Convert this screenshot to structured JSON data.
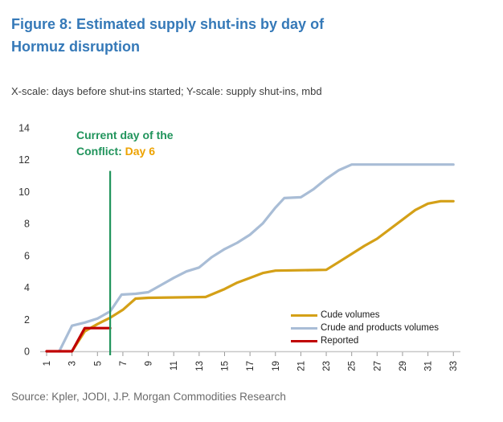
{
  "figure": {
    "title_line1": "Figure 8: Estimated supply shut-ins by day of",
    "title_line2": "Hormuz disruption",
    "subtitle": "X-scale: days before shut-ins started; Y-scale: supply shut-ins, mbd",
    "source": "Source: Kpler, JODI, J.P. Morgan Commodities Research"
  },
  "colors": {
    "title_blue": "#3579B8",
    "crude": "#D4A017",
    "crude_products": "#A9BDD6",
    "reported": "#C00000",
    "event_green": "#21945C",
    "day_amber": "#EDA200",
    "axis_line": "#C8C8C8",
    "tick": "#999999",
    "label": "#262626",
    "source_gray": "#6A6A6A"
  },
  "chart_data": {
    "type": "line",
    "title": "Figure 8: Estimated supply shut-ins by day of Hormuz disruption",
    "x_label": "days before shut-ins started",
    "y_label": "supply shut-ins, mbd",
    "xlim": [
      1,
      33
    ],
    "ylim": [
      0,
      14
    ],
    "x_ticks": [
      1,
      3,
      5,
      7,
      9,
      11,
      13,
      15,
      17,
      19,
      21,
      23,
      25,
      27,
      29,
      31,
      33
    ],
    "y_ticks": [
      0,
      2,
      4,
      6,
      8,
      10,
      12,
      14
    ],
    "grid": false,
    "legend_position": "inside lower right",
    "annotation": {
      "text_line1": "Current day of the",
      "text_line2_prefix": "Conflict: ",
      "text_line2_value": "Day 6",
      "x_day": 6,
      "line_top_value": 11.3
    },
    "series": [
      {
        "name": "Cude volumes",
        "color_key": "crude",
        "z": 2,
        "points": [
          [
            3,
            0
          ],
          [
            4,
            1.25
          ],
          [
            5,
            1.7
          ],
          [
            6,
            2.1
          ],
          [
            7,
            2.6
          ],
          [
            8,
            3.3
          ],
          [
            9,
            3.35
          ],
          [
            13.5,
            3.4
          ],
          [
            15,
            3.9
          ],
          [
            16,
            4.3
          ],
          [
            17,
            4.6
          ],
          [
            18,
            4.9
          ],
          [
            19,
            5.05
          ],
          [
            23,
            5.1
          ],
          [
            24,
            5.6
          ],
          [
            25,
            6.1
          ],
          [
            26,
            6.6
          ],
          [
            27,
            7.05
          ],
          [
            28,
            7.65
          ],
          [
            29,
            8.25
          ],
          [
            30,
            8.85
          ],
          [
            31,
            9.25
          ],
          [
            32,
            9.4
          ],
          [
            33,
            9.4
          ]
        ]
      },
      {
        "name": "Crude and products volumes",
        "color_key": "crude_products",
        "z": 1,
        "points": [
          [
            2,
            0
          ],
          [
            3,
            1.6
          ],
          [
            4,
            1.8
          ],
          [
            5,
            2.05
          ],
          [
            6,
            2.5
          ],
          [
            6.9,
            3.55
          ],
          [
            8,
            3.6
          ],
          [
            9,
            3.7
          ],
          [
            10,
            4.15
          ],
          [
            11,
            4.6
          ],
          [
            12,
            5.0
          ],
          [
            13,
            5.25
          ],
          [
            14,
            5.9
          ],
          [
            15,
            6.4
          ],
          [
            16,
            6.8
          ],
          [
            17,
            7.3
          ],
          [
            18,
            8.0
          ],
          [
            19,
            9.0
          ],
          [
            19.7,
            9.6
          ],
          [
            21,
            9.65
          ],
          [
            22,
            10.15
          ],
          [
            23,
            10.8
          ],
          [
            24,
            11.35
          ],
          [
            25,
            11.7
          ],
          [
            33,
            11.7
          ]
        ]
      },
      {
        "name": "Reported",
        "color_key": "reported",
        "z": 3,
        "points": [
          [
            1,
            0
          ],
          [
            3,
            0
          ],
          [
            4,
            1.45
          ],
          [
            6,
            1.45
          ]
        ]
      }
    ]
  }
}
